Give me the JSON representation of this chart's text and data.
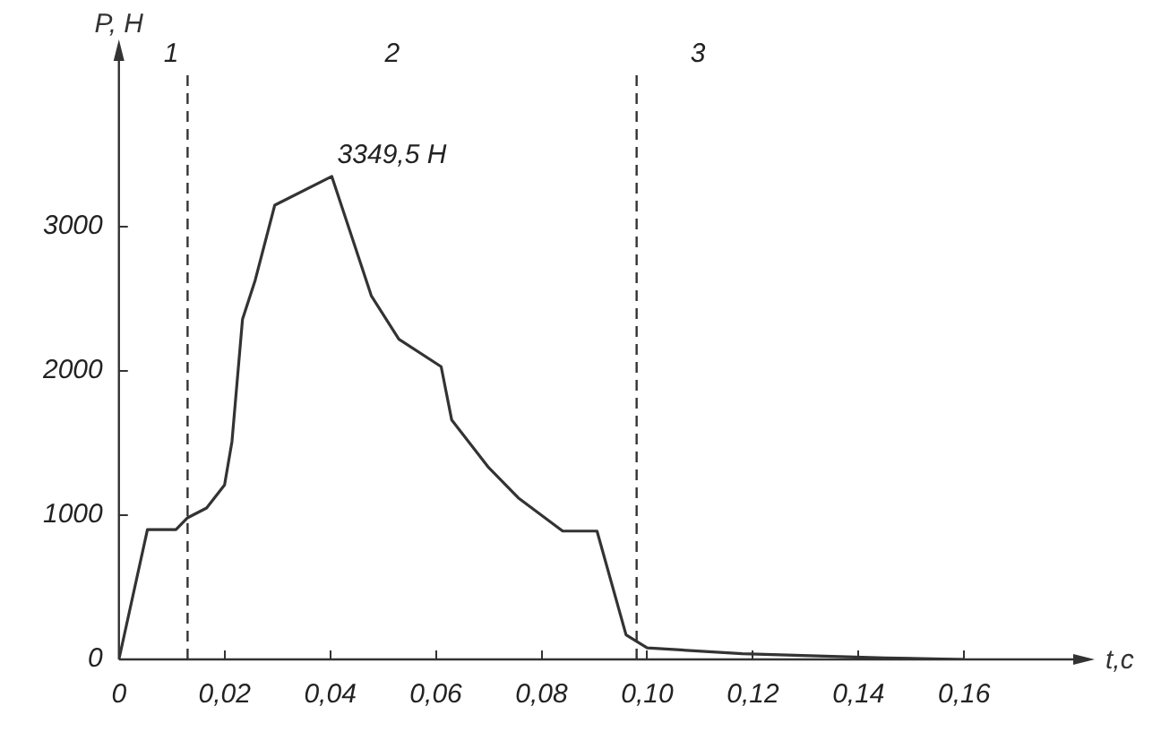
{
  "chart_data": {
    "type": "line",
    "xlabel": "t,c",
    "ylabel": "P, Н",
    "x": [
      0,
      0.0054,
      0.0108,
      0.0129,
      0.0166,
      0.02,
      0.0214,
      0.0234,
      0.0258,
      0.0295,
      0.0403,
      0.0478,
      0.053,
      0.061,
      0.063,
      0.07,
      0.0756,
      0.084,
      0.0905,
      0.096,
      0.1,
      0.118,
      0.145,
      0.16
    ],
    "series": [
      {
        "color": "#333333",
        "values": [
          0,
          900,
          900,
          980,
          1050,
          1210,
          1510,
          2360,
          2630,
          3150,
          3349.5,
          2520,
          2220,
          2030,
          1660,
          1330,
          1120,
          890,
          890,
          170,
          80,
          40,
          10,
          0
        ]
      }
    ],
    "xlim": [
      0,
      0.182
    ],
    "ylim": [
      0,
      4200
    ],
    "xticks": [
      0,
      {
        "value": 0.02,
        "label": "0,02"
      },
      {
        "value": 0.04,
        "label": "0,04"
      },
      {
        "value": 0.06,
        "label": "0,06"
      },
      {
        "value": 0.08,
        "label": "0,08"
      },
      {
        "value": 0.1,
        "label": "0,10"
      },
      {
        "value": 0.12,
        "label": "0,12"
      },
      {
        "value": 0.14,
        "label": "0,14"
      },
      {
        "value": 0.16,
        "label": "0,16"
      }
    ],
    "yticks": [
      0,
      1000,
      2000,
      3000
    ],
    "ref_lines": [
      {
        "axis": "x",
        "value": 0.013,
        "line_style": "dashed",
        "color": "#333333"
      },
      {
        "axis": "x",
        "value": 0.098,
        "line_style": "dashed",
        "color": "#333333"
      }
    ],
    "annotations": [
      "1",
      "2",
      "3",
      {
        "text": "3349,5 Н",
        "x": 0.04,
        "y": 3349.5
      }
    ],
    "grid": false,
    "legend": false,
    "marker": "none",
    "line_style": "solid"
  }
}
